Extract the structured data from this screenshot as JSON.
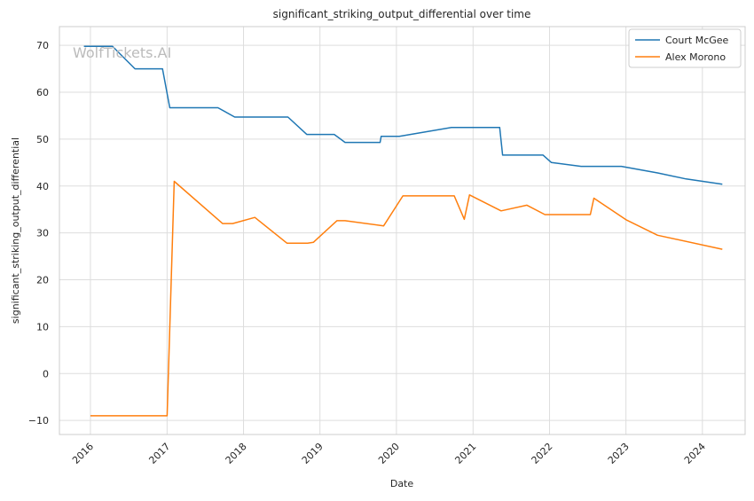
{
  "watermark": "WolfTickets.AI",
  "chart_data": {
    "type": "line",
    "title": "significant_striking_output_differential over time",
    "xlabel": "Date",
    "ylabel": "significant_striking_output_differential",
    "x_ticks": [
      "2016",
      "2017",
      "2018",
      "2019",
      "2020",
      "2021",
      "2022",
      "2023",
      "2024"
    ],
    "y_ticks": [
      -10,
      0,
      10,
      20,
      30,
      40,
      50,
      60,
      70
    ],
    "xlim": [
      "2015-08-06",
      "2024-07-23"
    ],
    "ylim": [
      -13,
      74
    ],
    "grid": true,
    "legend_position": "top-right",
    "series": [
      {
        "name": "Court McGee",
        "color": "#1f77b4",
        "points": [
          [
            "2015-12-01",
            69.8
          ],
          [
            "2016-04-15",
            69.8
          ],
          [
            "2016-08-01",
            65.0
          ],
          [
            "2016-12-10",
            65.0
          ],
          [
            "2017-01-14",
            56.7
          ],
          [
            "2017-09-01",
            56.7
          ],
          [
            "2017-11-20",
            54.7
          ],
          [
            "2018-08-01",
            54.7
          ],
          [
            "2018-10-30",
            51.0
          ],
          [
            "2019-03-10",
            51.0
          ],
          [
            "2019-05-01",
            49.3
          ],
          [
            "2019-10-15",
            49.3
          ],
          [
            "2019-10-20",
            50.6
          ],
          [
            "2020-01-15",
            50.6
          ],
          [
            "2020-09-20",
            52.5
          ],
          [
            "2021-05-08",
            52.5
          ],
          [
            "2021-05-22",
            46.6
          ],
          [
            "2021-12-01",
            46.6
          ],
          [
            "2022-01-10",
            45.0
          ],
          [
            "2022-06-01",
            44.2
          ],
          [
            "2022-12-10",
            44.2
          ],
          [
            "2023-06-01",
            42.8
          ],
          [
            "2023-10-15",
            41.5
          ],
          [
            "2024-04-05",
            40.4
          ]
        ]
      },
      {
        "name": "Alex Morono",
        "color": "#ff7f0e",
        "points": [
          [
            "2016-01-01",
            -9.0
          ],
          [
            "2017-01-01",
            -9.0
          ],
          [
            "2017-02-04",
            41.0
          ],
          [
            "2017-09-23",
            32.0
          ],
          [
            "2017-11-10",
            32.0
          ],
          [
            "2018-02-24",
            33.3
          ],
          [
            "2018-07-28",
            27.8
          ],
          [
            "2018-11-03",
            27.8
          ],
          [
            "2018-12-01",
            28.0
          ],
          [
            "2019-03-23",
            32.6
          ],
          [
            "2019-05-01",
            32.6
          ],
          [
            "2019-11-01",
            31.5
          ],
          [
            "2020-02-01",
            37.9
          ],
          [
            "2020-10-03",
            37.9
          ],
          [
            "2020-11-20",
            32.9
          ],
          [
            "2020-12-15",
            38.1
          ],
          [
            "2021-05-15",
            34.7
          ],
          [
            "2021-09-15",
            35.9
          ],
          [
            "2021-12-10",
            33.9
          ],
          [
            "2022-07-15",
            33.9
          ],
          [
            "2022-08-01",
            37.4
          ],
          [
            "2023-01-01",
            32.8
          ],
          [
            "2023-06-01",
            29.5
          ],
          [
            "2024-04-05",
            26.5
          ]
        ]
      }
    ]
  }
}
